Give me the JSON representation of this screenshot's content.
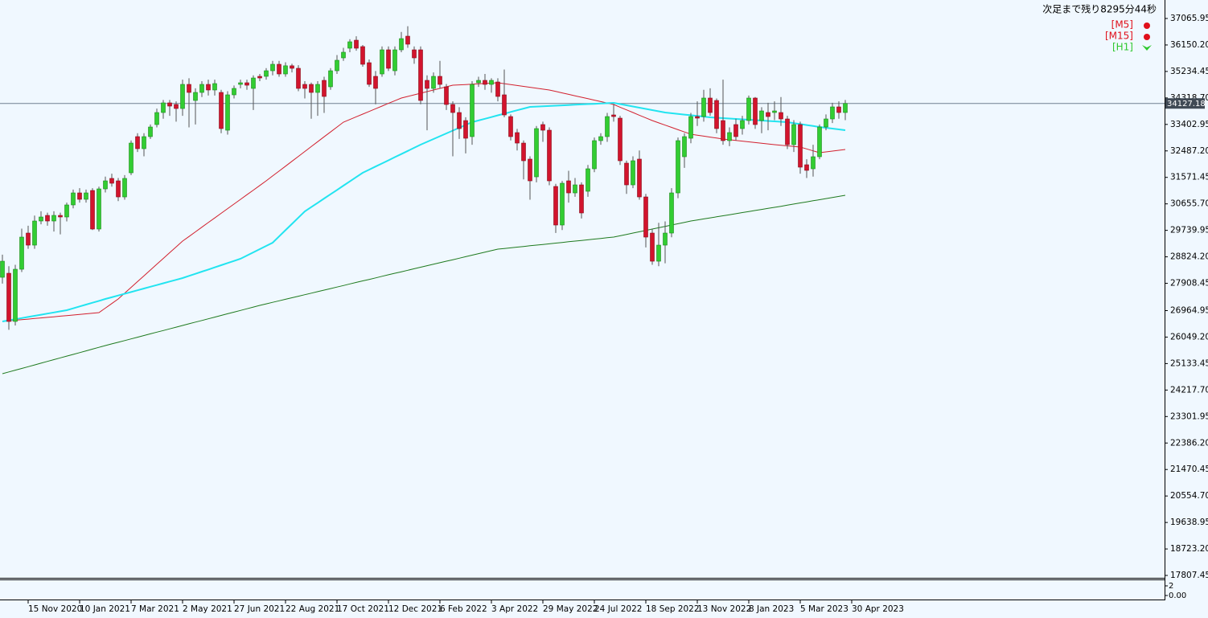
{
  "chart_data": {
    "type": "candlestick",
    "countdown": "次足まで残り8295分44秒",
    "timeframes": [
      {
        "label": "[M5]",
        "color": "#e0101a"
      },
      {
        "label": "[M15]",
        "color": "#e0101a"
      },
      {
        "label": "[H1]",
        "color": "#2ec82e"
      }
    ],
    "up_color": "#32cd32",
    "down_color": "#d2142d",
    "ylim": [
      17725,
      37705
    ],
    "yticks": [
      37065.95,
      {
        "value": 36150.2,
        "label": "36150.20"
      },
      35234.45,
      {
        "value": 34318.7,
        "label": "34318.70"
      },
      33402.95,
      {
        "value": 32487.2,
        "label": "32487.20"
      },
      31571.45,
      {
        "value": 30655.7,
        "label": "30655.70"
      },
      29739.95,
      {
        "value": 28824.2,
        "label": "28824.20"
      },
      27908.45,
      26964.95,
      {
        "value": 26049.2,
        "label": "26049.20"
      },
      25133.45,
      {
        "value": 24217.7,
        "label": "24217.70"
      },
      23301.95,
      {
        "value": 22386.2,
        "label": "22386.20"
      },
      21470.45,
      {
        "value": 20554.7,
        "label": "20554.70"
      },
      19638.95,
      {
        "value": 18723.2,
        "label": "18723.20"
      },
      17807.45
    ],
    "current_price": 34127.18,
    "categories": [
      null,
      null,
      null,
      null,
      "15 Nov 2020",
      null,
      null,
      null,
      null,
      null,
      null,
      null,
      "10 Jan 2021",
      null,
      null,
      null,
      null,
      null,
      null,
      null,
      "7 Mar 2021",
      null,
      null,
      null,
      null,
      null,
      null,
      null,
      "2 May 2021",
      null,
      null,
      null,
      null,
      null,
      null,
      null,
      "27 Jun 2021",
      null,
      null,
      null,
      null,
      null,
      null,
      null,
      "22 Aug 2021",
      null,
      null,
      null,
      null,
      null,
      null,
      null,
      "17 Oct 2021",
      null,
      null,
      null,
      null,
      null,
      null,
      null,
      "12 Dec 2021",
      null,
      null,
      null,
      null,
      null,
      null,
      null,
      "6 Feb 2022",
      null,
      null,
      null,
      null,
      null,
      null,
      null,
      "3 Apr 2022",
      null,
      null,
      null,
      null,
      null,
      null,
      null,
      "29 May 2022",
      null,
      null,
      null,
      null,
      null,
      null,
      null,
      "24 Jul 2022",
      null,
      null,
      null,
      null,
      null,
      null,
      null,
      "18 Sep 2022",
      null,
      null,
      null,
      null,
      null,
      null,
      null,
      "13 Nov 2022",
      null,
      null,
      null,
      null,
      null,
      null,
      null,
      "8 Jan 2023",
      null,
      null,
      null,
      null,
      null,
      null,
      null,
      "5 Mar 2023",
      null,
      null,
      null,
      null,
      null,
      null,
      null,
      "30 Apr 2023"
    ],
    "open": [
      28117,
      28256,
      26590,
      28395,
      29646,
      29229,
      30063,
      30257,
      30063,
      30257,
      30202,
      30619,
      31035,
      30813,
      31119,
      29785,
      31174,
      31536,
      31452,
      30896,
      31730,
      32981,
      32564,
      32981,
      33398,
      33814,
      34148,
      34092,
      33953,
      34787,
      34231,
      34509,
      34787,
      34593,
      34509,
      33203,
      34426,
      34787,
      34843,
      34648,
      35065,
      35065,
      35259,
      35482,
      35148,
      35430,
      35343,
      34787,
      34787,
      34509,
      34926,
      34704,
      35259,
      35704,
      36038,
      36315,
      36094,
      35537,
      35065,
      35148,
      35982,
      35259,
      35982,
      36454,
      35982,
      35982,
      34926,
      34648,
      35065,
      34704,
      34092,
      33814,
      33536,
      32981,
      34843,
      34926,
      34787,
      34870,
      34426,
      33675,
      33120,
      32758,
      32203,
      31591,
      33398,
      33203,
      31258,
      29924,
      31452,
      31035,
      31313,
      31091,
      31869,
      32842,
      32981,
      33731,
      33620,
      32064,
      31313,
      32203,
      30896,
      29646,
      28673,
      29229,
      29646,
      31035,
      32286,
      32925,
      33675,
      33675,
      34315,
      34231,
      33536,
      32842,
      33398,
      33259,
      33536,
      34315,
      33536,
      33814,
      33814,
      33814,
      33592,
      32703,
      33398,
      32008,
      31869,
      32286,
      33314,
      33592,
      34009,
      33814,
      null
    ],
    "high": [
      28900,
      28500,
      28550,
      29800,
      29900,
      30250,
      30400,
      30350,
      30400,
      30350,
      30700,
      31150,
      31200,
      31150,
      31200,
      31250,
      31600,
      31700,
      31550,
      31650,
      32850,
      33100,
      33100,
      33400,
      33950,
      34250,
      34250,
      34200,
      34950,
      35000,
      34650,
      34900,
      34950,
      34950,
      34600,
      34550,
      34750,
      34950,
      34950,
      35100,
      35150,
      35350,
      35600,
      35600,
      35550,
      35500,
      35450,
      34900,
      34850,
      34900,
      35050,
      35350,
      35800,
      36050,
      36350,
      36450,
      36150,
      35650,
      35250,
      36100,
      36100,
      36100,
      36600,
      36800,
      36100,
      36100,
      35100,
      35200,
      35600,
      34800,
      34200,
      34000,
      33650,
      34900,
      35050,
      35150,
      35000,
      35000,
      35300,
      33750,
      33250,
      32850,
      32300,
      33350,
      33500,
      33300,
      31350,
      31450,
      31800,
      31550,
      31400,
      32000,
      32950,
      33100,
      33800,
      34100,
      33700,
      32150,
      32300,
      32500,
      31000,
      29800,
      30000,
      30050,
      31200,
      32950,
      33100,
      33800,
      34200,
      34600,
      34650,
      34300,
      34950,
      33300,
      33600,
      33700,
      34400,
      34350,
      34000,
      34150,
      34200,
      34350,
      33700,
      33550,
      33500,
      32200,
      32700,
      33400,
      33750,
      34150,
      34200,
      34250,
      null
    ],
    "low": [
      27900,
      26300,
      26450,
      28300,
      29100,
      29100,
      29950,
      29900,
      29700,
      29600,
      30050,
      30500,
      30700,
      30700,
      29750,
      29700,
      31050,
      31250,
      30750,
      30800,
      31650,
      32450,
      32300,
      32900,
      33300,
      33600,
      33700,
      33500,
      33700,
      33300,
      33400,
      34350,
      34400,
      34400,
      33100,
      33050,
      34300,
      34650,
      34600,
      33900,
      34900,
      34950,
      35100,
      35050,
      35050,
      35200,
      34550,
      34300,
      33600,
      33700,
      33800,
      34600,
      35150,
      35600,
      35900,
      35950,
      35400,
      34700,
      34100,
      35050,
      35250,
      35100,
      35900,
      36050,
      35500,
      34100,
      33200,
      34500,
      34650,
      33900,
      32300,
      32900,
      32400,
      32700,
      34700,
      34600,
      34500,
      34200,
      33650,
      32850,
      32500,
      31500,
      30800,
      31400,
      32800,
      31300,
      29650,
      29750,
      30700,
      30900,
      30150,
      30900,
      31750,
      32700,
      32800,
      33500,
      32000,
      31000,
      31200,
      30800,
      29150,
      28550,
      28500,
      28600,
      29500,
      30850,
      31900,
      32750,
      33350,
      33500,
      33700,
      33100,
      32700,
      32650,
      32850,
      33050,
      33400,
      33250,
      33100,
      33200,
      33550,
      33350,
      32550,
      32450,
      31700,
      31550,
      31600,
      32200,
      33200,
      33450,
      33600,
      33550,
      null
    ],
    "close": [
      28673,
      26589,
      28395,
      29507,
      29229,
      30063,
      30202,
      30063,
      30257,
      30202,
      30619,
      31035,
      30813,
      31035,
      29785,
      31174,
      31452,
      31369,
      30896,
      31536,
      32758,
      32564,
      32981,
      33314,
      33814,
      34148,
      34037,
      33953,
      34787,
      34509,
      34509,
      34787,
      34593,
      34815,
      33259,
      34426,
      34648,
      34843,
      34759,
      35009,
      35009,
      35259,
      35482,
      35148,
      35430,
      35343,
      34648,
      34648,
      34509,
      34787,
      34370,
      35259,
      35621,
      35899,
      36260,
      36038,
      35482,
      34787,
      34648,
      35982,
      35343,
      35982,
      36370,
      36177,
      35704,
      34231,
      34648,
      35065,
      34787,
      34092,
      33814,
      33259,
      32925,
      34787,
      34926,
      34787,
      34926,
      34370,
      33731,
      32981,
      32758,
      32147,
      31452,
      33259,
      33203,
      31452,
      29924,
      31369,
      31035,
      31313,
      30341,
      31869,
      32842,
      32981,
      33675,
      33675,
      32147,
      31313,
      32147,
      30896,
      29507,
      28673,
      29229,
      29646,
      31035,
      32842,
      32981,
      33675,
      33620,
      34315,
      33814,
      33259,
      32842,
      33120,
      32981,
      33536,
      34315,
      33398,
      33870,
      33675,
      33870,
      33592,
      32703,
      33398,
      31925,
      31814,
      32286,
      33314,
      33592,
      34009,
      33814,
      34127.18,
      null
    ],
    "overlays": [
      {
        "color": "#d2202e",
        "width": 1,
        "values": [
          26589,
          26609,
          26630,
          26650,
          26671,
          26691,
          26711,
          26732,
          26752,
          26773,
          26793,
          26813,
          26834,
          26854,
          26875,
          26895,
          27052,
          27210,
          27367,
          27567,
          27767,
          27967,
          28167,
          28367,
          28568,
          28768,
          28968,
          29168,
          29368,
          29528,
          29689,
          29849,
          30009,
          30170,
          30330,
          30490,
          30650,
          30811,
          30971,
          31131,
          31292,
          31452,
          31621,
          31790,
          31959,
          32128,
          32298,
          32467,
          32636,
          32805,
          32974,
          33143,
          33312,
          33481,
          33574,
          33666,
          33759,
          33852,
          33944,
          34037,
          34130,
          34222,
          34315,
          34371,
          34426,
          34482,
          34537,
          34593,
          34648,
          34704,
          34759,
          34771,
          34783,
          34795,
          34807,
          34819,
          34831,
          34843,
          34812,
          34781,
          34749,
          34718,
          34687,
          34656,
          34624,
          34593,
          34543,
          34493,
          34443,
          34393,
          34343,
          34292,
          34242,
          34192,
          34142,
          34092,
          33999,
          33907,
          33814,
          33721,
          33629,
          33536,
          33457,
          33379,
          33300,
          33221,
          33143,
          33064,
          33031,
          32997,
          32964,
          32930,
          32897,
          32873,
          32848,
          32824,
          32800,
          32776,
          32751,
          32727,
          32703,
          32682,
          32661,
          32640,
          32620,
          32555,
          32490,
          32425,
          32453,
          32481,
          32508,
          32536,
          null
        ]
      },
      {
        "color": "#22e4f0",
        "width": 2,
        "values": [
          26589,
          26628,
          26667,
          26706,
          26745,
          26784,
          26822,
          26861,
          26900,
          26939,
          26978,
          27043,
          27108,
          27173,
          27237,
          27302,
          27367,
          27427,
          27488,
          27548,
          27608,
          27668,
          27729,
          27789,
          27849,
          27909,
          27970,
          28030,
          28090,
          28164,
          28238,
          28312,
          28386,
          28460,
          28535,
          28609,
          28683,
          28757,
          28868,
          28979,
          29090,
          29201,
          29312,
          29529,
          29746,
          29962,
          30179,
          30396,
          30544,
          30692,
          30841,
          30989,
          31137,
          31285,
          31434,
          31582,
          31730,
          31838,
          31946,
          32054,
          32162,
          32271,
          32379,
          32487,
          32595,
          32703,
          32800,
          32898,
          32995,
          33092,
          33189,
          33287,
          33384,
          33481,
          33540,
          33598,
          33657,
          33716,
          33774,
          33833,
          33892,
          33950,
          34009,
          34020,
          34030,
          34041,
          34052,
          34062,
          34073,
          34084,
          34094,
          34105,
          34116,
          34127,
          34137,
          34148,
          34106,
          34065,
          34023,
          33981,
          33939,
          33898,
          33856,
          33814,
          33790,
          33767,
          33743,
          33719,
          33696,
          33672,
          33648,
          33634,
          33620,
          33606,
          33592,
          33578,
          33564,
          33550,
          33536,
          33522,
          33508,
          33495,
          33481,
          33448,
          33414,
          33381,
          33347,
          33314,
          33286,
          33258,
          33231,
          33203,
          null
        ]
      },
      {
        "color": "#1e7a1e",
        "width": 1,
        "values": [
          24783,
          24844,
          24905,
          24965,
          25026,
          25087,
          25148,
          25208,
          25269,
          25330,
          25391,
          25451,
          25512,
          25573,
          25634,
          25694,
          25755,
          25813,
          25871,
          25929,
          25987,
          26045,
          26103,
          26161,
          26219,
          26276,
          26334,
          26392,
          26450,
          26508,
          26566,
          26624,
          26682,
          26740,
          26798,
          26856,
          26913,
          26971,
          27029,
          27087,
          27145,
          27198,
          27251,
          27304,
          27357,
          27410,
          27462,
          27515,
          27568,
          27621,
          27674,
          27727,
          27780,
          27833,
          27886,
          27939,
          27992,
          28044,
          28097,
          28150,
          28203,
          28256,
          28308,
          28360,
          28412,
          28465,
          28517,
          28569,
          28621,
          28673,
          28725,
          28777,
          28829,
          28882,
          28934,
          28986,
          29038,
          29090,
          29113,
          29136,
          29160,
          29183,
          29206,
          29229,
          29252,
          29275,
          29299,
          29322,
          29345,
          29368,
          29391,
          29414,
          29438,
          29461,
          29484,
          29507,
          29553,
          29600,
          29646,
          29692,
          29739,
          29785,
          29831,
          29878,
          29924,
          29970,
          30017,
          30063,
          30099,
          30136,
          30172,
          30208,
          30245,
          30281,
          30317,
          30354,
          30390,
          30426,
          30463,
          30499,
          30535,
          30573,
          30611,
          30649,
          30687,
          30725,
          30763,
          30800,
          30838,
          30876,
          30914,
          30952,
          null
        ]
      }
    ],
    "sub_chart": {
      "ylim": [
        0,
        2
      ],
      "yticks": [
        2,
        {
          "value": 0,
          "label": "0.00"
        }
      ]
    }
  }
}
